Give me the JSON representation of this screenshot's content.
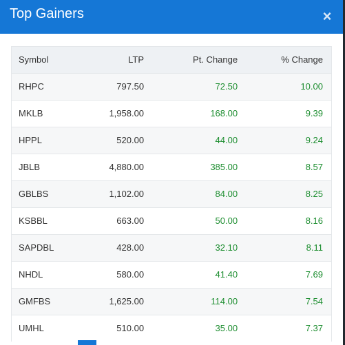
{
  "modal": {
    "title": "Top Gainers",
    "close_icon": "×"
  },
  "colors": {
    "header_bg": "#1577d6",
    "positive": "#1c8d2f",
    "row_alt": "#f6f7f8"
  },
  "table": {
    "headers": [
      "Symbol",
      "LTP",
      "Pt. Change",
      "% Change"
    ],
    "rows": [
      {
        "symbol": "RHPC",
        "ltp": "797.50",
        "pt": "72.50",
        "pct": "10.00"
      },
      {
        "symbol": "MKLB",
        "ltp": "1,958.00",
        "pt": "168.00",
        "pct": "9.39"
      },
      {
        "symbol": "HPPL",
        "ltp": "520.00",
        "pt": "44.00",
        "pct": "9.24"
      },
      {
        "symbol": "JBLB",
        "ltp": "4,880.00",
        "pt": "385.00",
        "pct": "8.57"
      },
      {
        "symbol": "GBLBS",
        "ltp": "1,102.00",
        "pt": "84.00",
        "pct": "8.25"
      },
      {
        "symbol": "KSBBL",
        "ltp": "663.00",
        "pt": "50.00",
        "pct": "8.16"
      },
      {
        "symbol": "SAPDBL",
        "ltp": "428.00",
        "pt": "32.10",
        "pct": "8.11"
      },
      {
        "symbol": "NHDL",
        "ltp": "580.00",
        "pt": "41.40",
        "pct": "7.69"
      },
      {
        "symbol": "GMFBS",
        "ltp": "1,625.00",
        "pt": "114.00",
        "pct": "7.54"
      },
      {
        "symbol": "UMHL",
        "ltp": "510.00",
        "pt": "35.00",
        "pct": "7.37"
      }
    ]
  }
}
